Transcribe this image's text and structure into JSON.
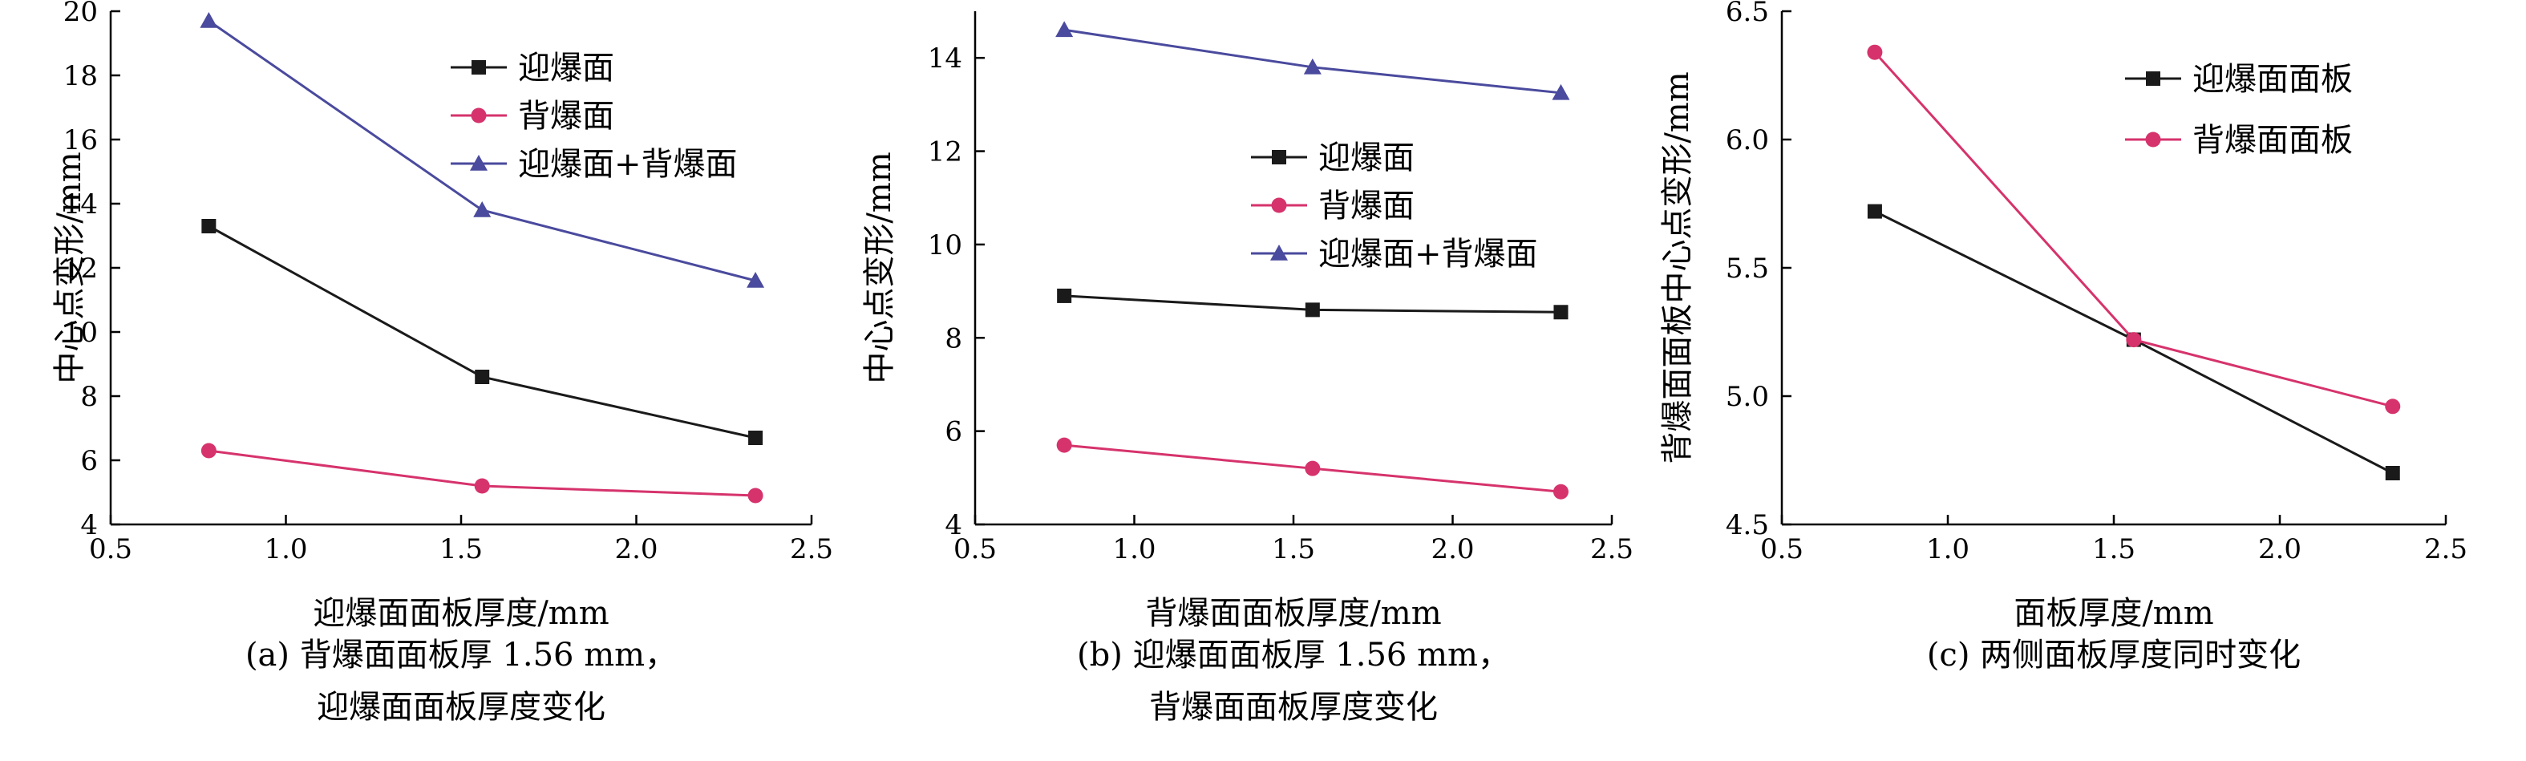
{
  "chart_data": [
    {
      "type": "line",
      "xlabel": "迎爆面面板厚度/mm",
      "ylabel": "中心点变形/mm",
      "xlim": [
        0.5,
        2.5
      ],
      "ylim": [
        4,
        20
      ],
      "xticks": [
        "0.5",
        "1.0",
        "1.5",
        "2.0",
        "2.5"
      ],
      "yticks": [
        "4",
        "6",
        "8",
        "10",
        "12",
        "14",
        "16",
        "18",
        "20"
      ],
      "x": [
        0.78,
        1.56,
        2.34
      ],
      "legend_position": "top-right",
      "series": [
        {
          "name": "迎爆面",
          "values": [
            13.3,
            8.6,
            6.7
          ],
          "color": "#1a1a1a",
          "marker": "square"
        },
        {
          "name": "背爆面",
          "values": [
            6.3,
            5.2,
            4.9
          ],
          "color": "#d6336c",
          "marker": "circle"
        },
        {
          "name": "迎爆面+背爆面",
          "values": [
            19.7,
            13.8,
            11.6
          ],
          "color": "#4a4a9e",
          "marker": "triangle"
        }
      ],
      "caption": [
        "(a) 背爆面面板厚 1.56 mm，",
        "迎爆面面板厚度变化"
      ]
    },
    {
      "type": "line",
      "xlabel": "背爆面面板厚度/mm",
      "ylabel": "中心点变形/mm",
      "xlim": [
        0.5,
        2.5
      ],
      "ylim": [
        4,
        15
      ],
      "xticks": [
        "0.5",
        "1.0",
        "1.5",
        "2.0",
        "2.5"
      ],
      "yticks": [
        "4",
        "6",
        "8",
        "10",
        "12",
        "14"
      ],
      "x": [
        0.78,
        1.56,
        2.34
      ],
      "legend_position": "center-right",
      "series": [
        {
          "name": "迎爆面",
          "values": [
            8.9,
            8.6,
            8.55
          ],
          "color": "#1a1a1a",
          "marker": "square"
        },
        {
          "name": "背爆面",
          "values": [
            5.7,
            5.2,
            4.7
          ],
          "color": "#d6336c",
          "marker": "circle"
        },
        {
          "name": "迎爆面+背爆面",
          "values": [
            14.6,
            13.8,
            13.25
          ],
          "color": "#4a4a9e",
          "marker": "triangle"
        }
      ],
      "caption": [
        "(b) 迎爆面面板厚 1.56 mm，",
        "背爆面面板厚度变化"
      ]
    },
    {
      "type": "line",
      "xlabel": "面板厚度/mm",
      "ylabel": "背爆面面板中心点变形/mm",
      "xlim": [
        0.5,
        2.5
      ],
      "ylim": [
        4.5,
        6.5
      ],
      "xticks": [
        "0.5",
        "1.0",
        "1.5",
        "2.0",
        "2.5"
      ],
      "yticks": [
        "4.5",
        "5.0",
        "5.5",
        "6.0",
        "6.5"
      ],
      "x": [
        0.78,
        1.56,
        2.34
      ],
      "legend_position": "top-right",
      "series": [
        {
          "name": "迎爆面面板",
          "values": [
            5.72,
            5.22,
            4.7
          ],
          "color": "#1a1a1a",
          "marker": "square"
        },
        {
          "name": "背爆面面板",
          "values": [
            6.34,
            5.22,
            4.96
          ],
          "color": "#d6336c",
          "marker": "circle"
        }
      ],
      "caption": [
        "(c) 两侧面板厚度同时变化"
      ]
    }
  ]
}
